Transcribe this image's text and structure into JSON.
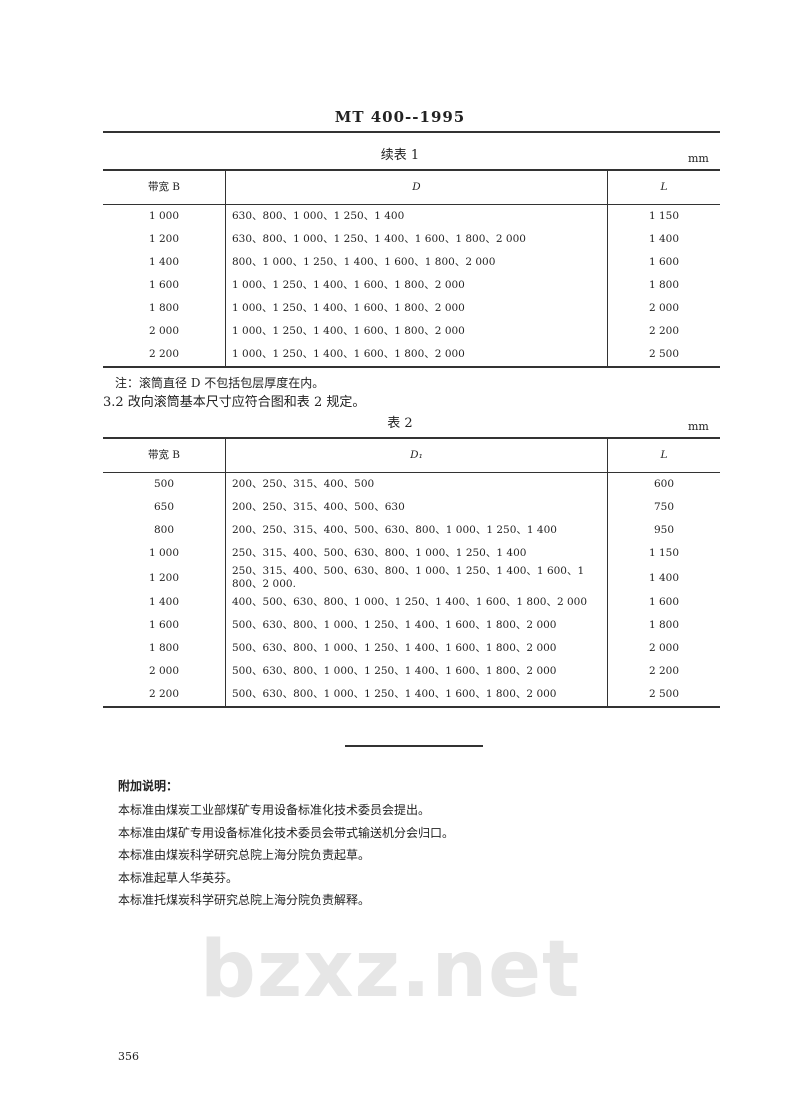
{
  "watermark": "bzxz.net",
  "header": "MT  400--1995",
  "table1": {
    "caption": "续表 1",
    "unit": "mm",
    "columns": [
      "带宽 B",
      "D",
      "L"
    ],
    "rows": [
      [
        "1 000",
        "630、800、1 000、1 250、1 400",
        "1 150"
      ],
      [
        "1 200",
        "630、800、1 000、1 250、1 400、1 600、1 800、2 000",
        "1 400"
      ],
      [
        "1 400",
        "800、1 000、1 250、1 400、1 600、1 800、2 000",
        "1 600"
      ],
      [
        "1 600",
        "1 000、1 250、1 400、1 600、1 800、2 000",
        "1 800"
      ],
      [
        "1 800",
        "1 000、1 250、1 400、1 600、1 800、2 000",
        "2 000"
      ],
      [
        "2 000",
        "1 000、1 250、1 400、1 600、1 800、2 000",
        "2 200"
      ],
      [
        "2 200",
        "1 000、1 250、1 400、1 600、1 800、2 000",
        "2 500"
      ]
    ],
    "note": "注：滚筒直径 D 不包括包层厚度在内。"
  },
  "section": "3.2  改向滚筒基本尺寸应符合图和表 2 规定。",
  "table2": {
    "caption": "表 2",
    "unit": "mm",
    "columns": [
      "带宽 B",
      "D₁",
      "L"
    ],
    "rows": [
      [
        "500",
        "200、250、315、400、500",
        "600"
      ],
      [
        "650",
        "200、250、315、400、500、630",
        "750"
      ],
      [
        "800",
        "200、250、315、400、500、630、800、1 000、1 250、1 400",
        "950"
      ],
      [
        "1 000",
        "250、315、400、500、630、800、1 000、1 250、1 400",
        "1 150"
      ],
      [
        "1 200",
        "250、315、400、500、630、800、1 000、1 250、1 400、1 600、1 800、2 000.",
        "1 400"
      ],
      [
        "1 400",
        "400、500、630、800、1 000、1 250、1 400、1 600、1 800、2 000",
        "1 600"
      ],
      [
        "1 600",
        "500、630、800、1 000、1 250、1 400、1 600、1 800、2 000",
        "1 800"
      ],
      [
        "1 800",
        "500、630、800、1 000、1 250、1 400、1 600、1 800、2 000",
        "2 000"
      ],
      [
        "2 000",
        "500、630、800、1 000、1 250、1 400、1 600、1 800、2 000",
        "2 200"
      ],
      [
        "2 200",
        "500、630、800、1 000、1 250、1 400、1 600、1 800、2 000",
        "2 500"
      ]
    ]
  },
  "additional": {
    "title": "附加说明：",
    "lines": [
      "本标准由煤炭工业部煤矿专用设备标准化技术委员会提出。",
      "本标准由煤矿专用设备标准化技术委员会带式输送机分会归口。",
      "本标准由煤炭科学研究总院上海分院负责起草。",
      "本标准起草人华英芬。",
      "本标准托煤炭科学研究总院上海分院负责解释。"
    ]
  },
  "page_number": "356"
}
